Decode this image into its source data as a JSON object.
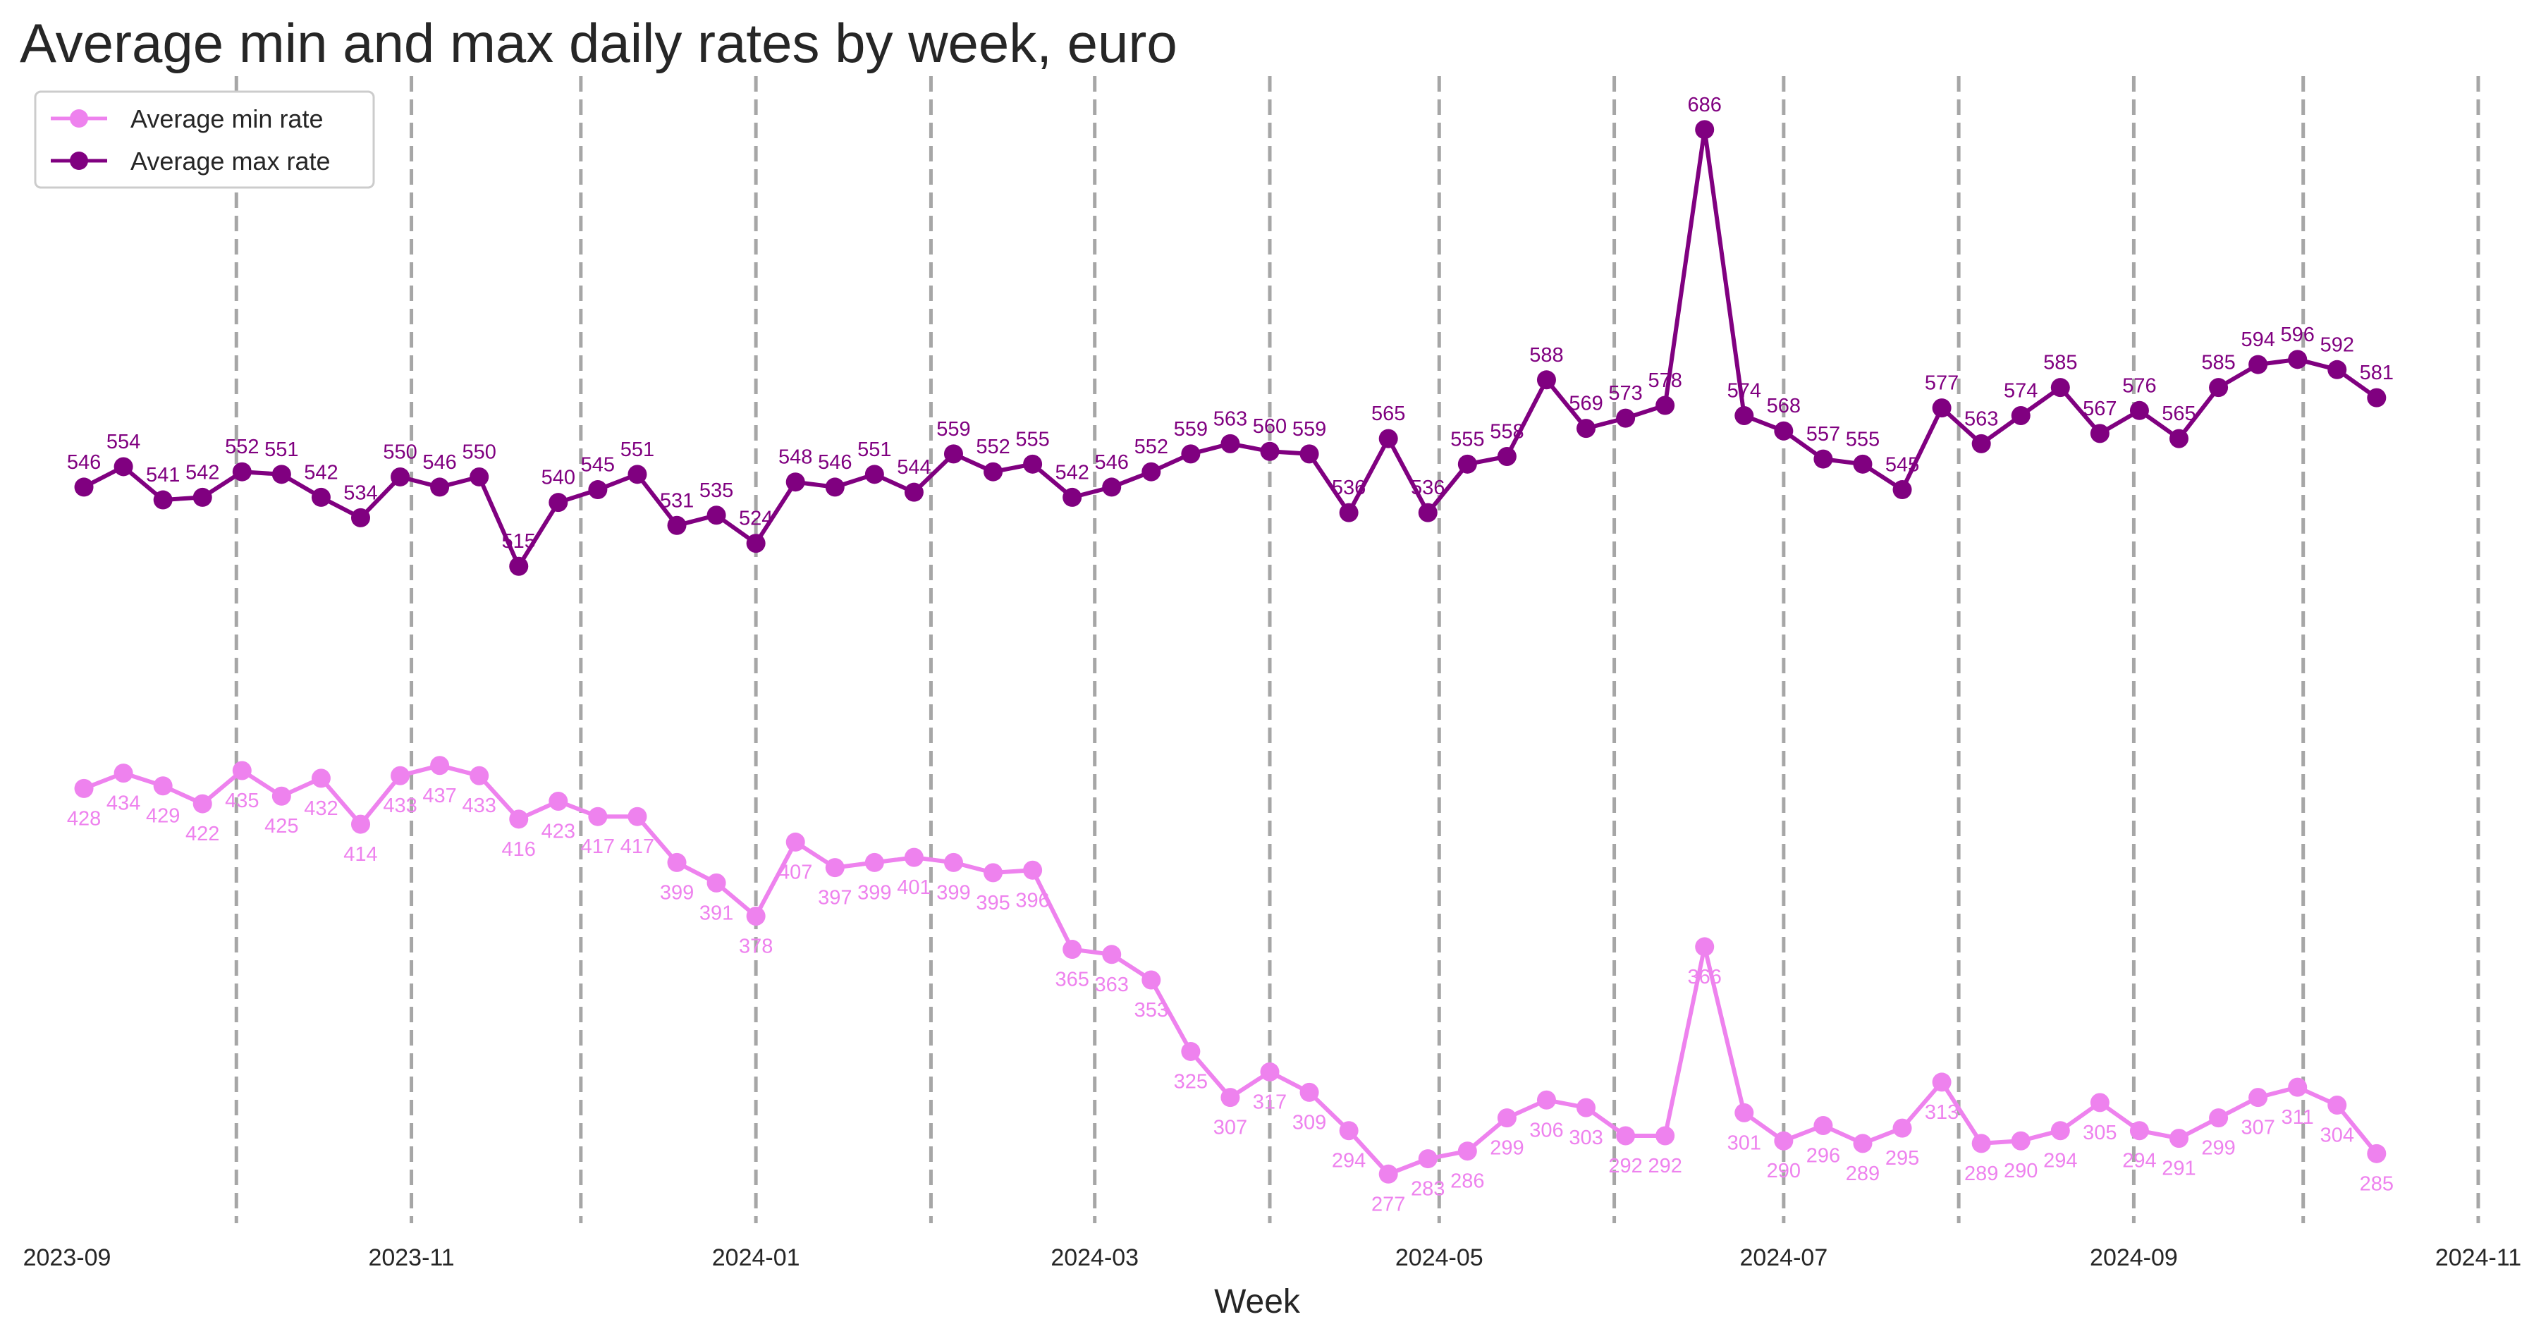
{
  "chart_data": {
    "type": "line",
    "title": "Average min and max daily rates by week, euro",
    "xlabel": "Week",
    "ylabel": "",
    "x_tick_labels": [
      "2023-09",
      "2023-11",
      "2024-01",
      "2024-03",
      "2024-05",
      "2024-07",
      "2024-09",
      "2024-11"
    ],
    "x_tick_dates": [
      "2023-09-01",
      "2023-11-01",
      "2024-01-01",
      "2024-03-01",
      "2024-05-01",
      "2024-07-01",
      "2024-09-01",
      "2024-11-01"
    ],
    "month_lines": [
      "2023-10-01",
      "2023-11-01",
      "2023-12-01",
      "2024-01-01",
      "2024-02-01",
      "2024-03-01",
      "2024-04-01",
      "2024-05-01",
      "2024-06-01",
      "2024-07-01",
      "2024-08-01",
      "2024-09-01",
      "2024-10-01",
      "2024-11-01"
    ],
    "grid": false,
    "legend_position": "top-left",
    "ylim": [
      255,
      705
    ],
    "x": [
      "2023-09-04",
      "2023-09-11",
      "2023-09-18",
      "2023-09-25",
      "2023-10-02",
      "2023-10-09",
      "2023-10-16",
      "2023-10-23",
      "2023-10-30",
      "2023-11-06",
      "2023-11-13",
      "2023-11-20",
      "2023-11-27",
      "2023-12-04",
      "2023-12-11",
      "2023-12-18",
      "2023-12-25",
      "2024-01-01",
      "2024-01-08",
      "2024-01-15",
      "2024-01-22",
      "2024-01-29",
      "2024-02-05",
      "2024-02-12",
      "2024-02-19",
      "2024-02-26",
      "2024-03-04",
      "2024-03-11",
      "2024-03-18",
      "2024-03-25",
      "2024-04-01",
      "2024-04-08",
      "2024-04-15",
      "2024-04-22",
      "2024-04-29",
      "2024-05-06",
      "2024-05-13",
      "2024-05-20",
      "2024-05-27",
      "2024-06-03",
      "2024-06-10",
      "2024-06-17",
      "2024-06-24",
      "2024-07-01",
      "2024-07-08",
      "2024-07-15",
      "2024-07-22",
      "2024-07-29",
      "2024-08-05",
      "2024-08-12",
      "2024-08-19",
      "2024-08-26",
      "2024-09-02",
      "2024-09-09",
      "2024-09-16",
      "2024-09-23",
      "2024-09-30",
      "2024-10-07",
      "2024-10-14"
    ],
    "series": [
      {
        "name": "Average min rate",
        "color": "#ee82ee",
        "label_position": "below",
        "values": [
          428,
          434,
          429,
          422,
          435,
          425,
          432,
          414,
          433,
          437,
          433,
          416,
          423,
          417,
          417,
          399,
          391,
          378,
          407,
          397,
          399,
          401,
          399,
          395,
          396,
          365,
          363,
          353,
          325,
          307,
          317,
          309,
          294,
          277,
          283,
          286,
          299,
          306,
          303,
          292,
          292,
          366,
          301,
          290,
          296,
          289,
          295,
          313,
          289,
          290,
          294,
          305,
          294,
          291,
          299,
          307,
          311,
          304,
          285
        ]
      },
      {
        "name": "Average max rate",
        "color": "#800080",
        "label_position": "above",
        "values": [
          546,
          554,
          541,
          542,
          552,
          551,
          542,
          534,
          550,
          546,
          550,
          515,
          540,
          545,
          551,
          531,
          535,
          524,
          548,
          546,
          551,
          544,
          559,
          552,
          555,
          542,
          546,
          552,
          559,
          563,
          560,
          559,
          536,
          565,
          536,
          555,
          558,
          588,
          569,
          573,
          578,
          686,
          574,
          568,
          557,
          555,
          545,
          577,
          563,
          574,
          585,
          567,
          576,
          565,
          585,
          594,
          596,
          592,
          581
        ]
      }
    ]
  }
}
